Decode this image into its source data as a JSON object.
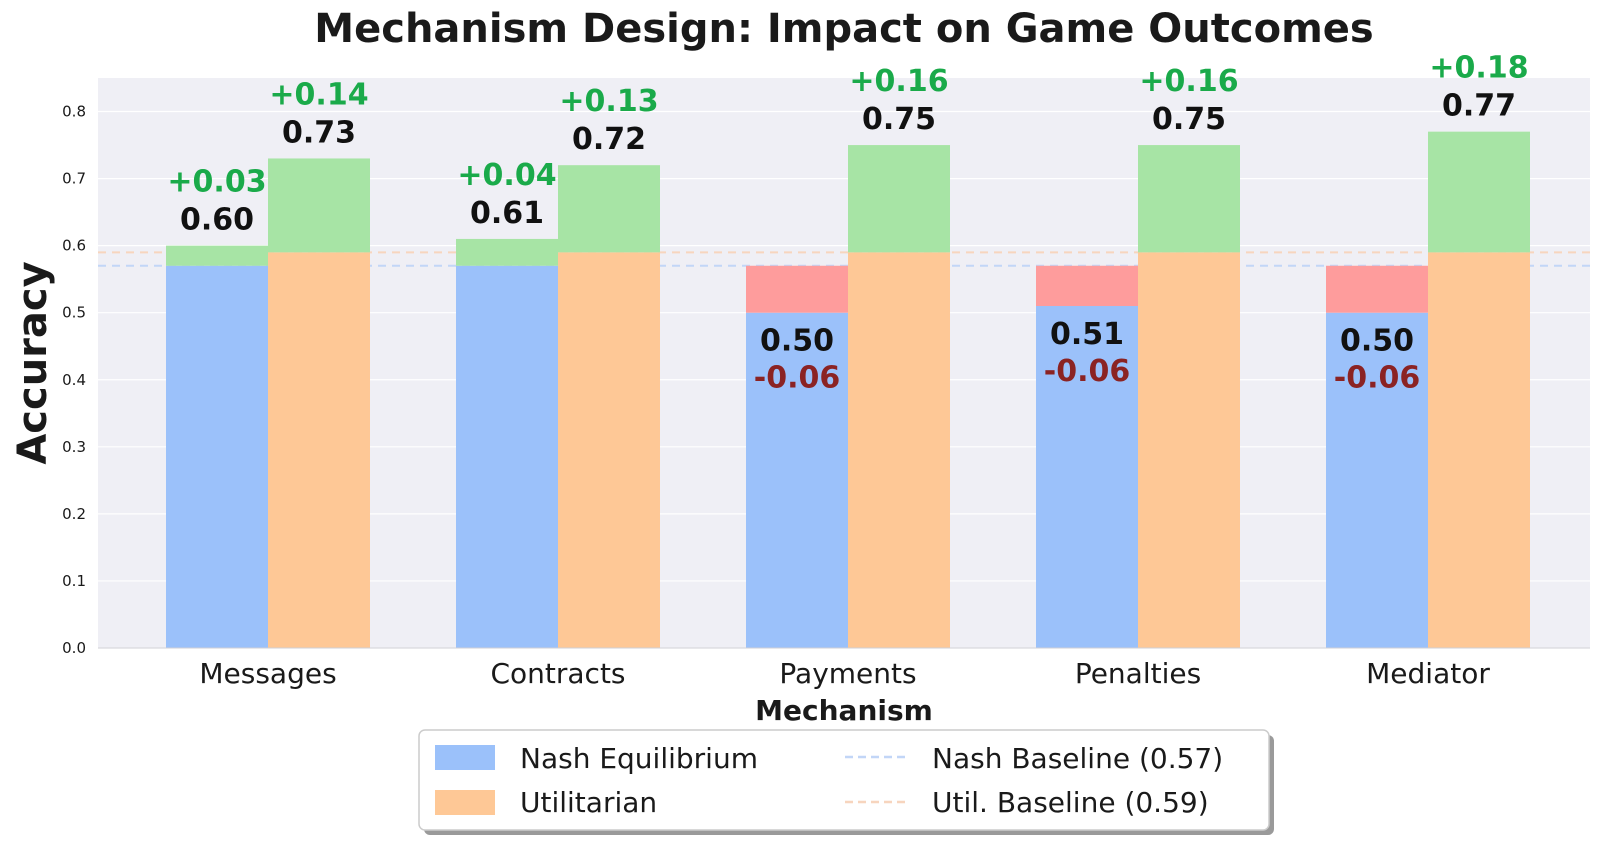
{
  "chart_data": {
    "type": "bar",
    "title": "Mechanism Design: Impact on Game Outcomes",
    "xlabel": "Mechanism",
    "ylabel": "Accuracy",
    "ylim": [
      0,
      0.85
    ],
    "yticks": [
      "0.0",
      "0.1",
      "0.2",
      "0.3",
      "0.4",
      "0.5",
      "0.6",
      "0.7",
      "0.8"
    ],
    "grid": true,
    "legend_position": "bottom-center",
    "categories": [
      "Messages",
      "Contracts",
      "Payments",
      "Penalties",
      "Mediator"
    ],
    "series": [
      {
        "name": "Nash Equilibrium",
        "color": "#9bc1fa",
        "baseline": 0.57,
        "values": [
          0.6,
          0.61,
          0.5,
          0.51,
          0.5
        ],
        "value_labels": [
          "0.60",
          "0.61",
          "0.50",
          "0.51",
          "0.50"
        ],
        "delta_labels": [
          "+0.03",
          "+0.04",
          "-0.06",
          "-0.06",
          "-0.06"
        ]
      },
      {
        "name": "Utilitarian",
        "color": "#fec896",
        "baseline": 0.59,
        "values": [
          0.73,
          0.72,
          0.75,
          0.75,
          0.77
        ],
        "value_labels": [
          "0.73",
          "0.72",
          "0.75",
          "0.75",
          "0.77"
        ],
        "delta_labels": [
          "+0.14",
          "+0.13",
          "+0.16",
          "+0.16",
          "+0.18"
        ]
      }
    ],
    "gain_color": "#a7e4a5",
    "loss_color": "#fe9c9c",
    "gain_text_color": "#1aaa4a",
    "loss_text_color": "#8b2323",
    "baselines": [
      {
        "label": "Nash Baseline (0.57)",
        "value": 0.57,
        "color": "#c2d6f7"
      },
      {
        "label": "Util. Baseline (0.59)",
        "value": 0.59,
        "color": "#f7d5be"
      }
    ]
  }
}
